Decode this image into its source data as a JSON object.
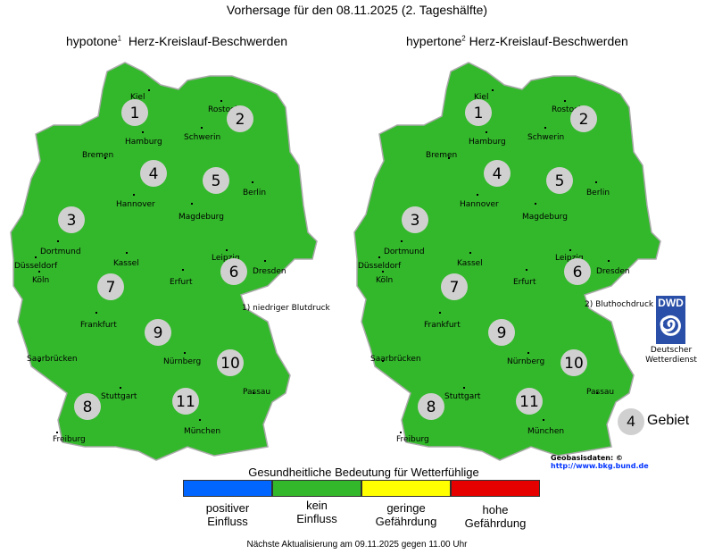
{
  "title": "Vorhersage für den 08.11.2025 (2. Tageshälfte)",
  "maps": [
    {
      "title": "hypotone",
      "sup": "1",
      "subtitle": "Herz-Kreislauf-Beschwerden",
      "note": "1) niedriger Blutdruck",
      "color": "#33b82b"
    },
    {
      "title": "hypertone",
      "sup": "2",
      "subtitle": "Herz-Kreislauf-Beschwerden",
      "note": "2) Bluthochdruck",
      "color": "#33b82b"
    }
  ],
  "cities": [
    "Kiel",
    "Rostock",
    "Hamburg",
    "Schwerin",
    "Bremen",
    "Hannover",
    "Berlin",
    "Magdeburg",
    "Dortmund",
    "Düsseldorf",
    "Köln",
    "Kassel",
    "Leipzig",
    "Dresden",
    "Erfurt",
    "Frankfurt",
    "Saarbrücken",
    "Nürnberg",
    "Passau",
    "Stuttgart",
    "Freiburg",
    "München"
  ],
  "regions": [
    "1",
    "2",
    "3",
    "4",
    "5",
    "6",
    "7",
    "8",
    "9",
    "10",
    "11"
  ],
  "logo": {
    "text": "DWD",
    "line1": "Deutscher",
    "line2": "Wetterdienst"
  },
  "area_legend": {
    "number": "4",
    "label": "Gebiet"
  },
  "source": {
    "label": "Geobasisdaten: ©",
    "link": "http://www.bkg.bund.de"
  },
  "legend": {
    "title": "Gesundheitliche Bedeutung für Wetterfühlige",
    "items": [
      {
        "line1": "positiver",
        "line2": "Einfluss",
        "color": "#0066ff"
      },
      {
        "line1": "kein",
        "line2": "Einfluss",
        "color": "#33b82b"
      },
      {
        "line1": "geringe",
        "line2": "Gefährdung",
        "color": "#ffff00"
      },
      {
        "line1": "hohe",
        "line2": "Gefährdung",
        "color": "#e60000"
      }
    ]
  },
  "footer": "Nächste Aktualisierung am 09.11.2025 gegen 11.00 Uhr"
}
